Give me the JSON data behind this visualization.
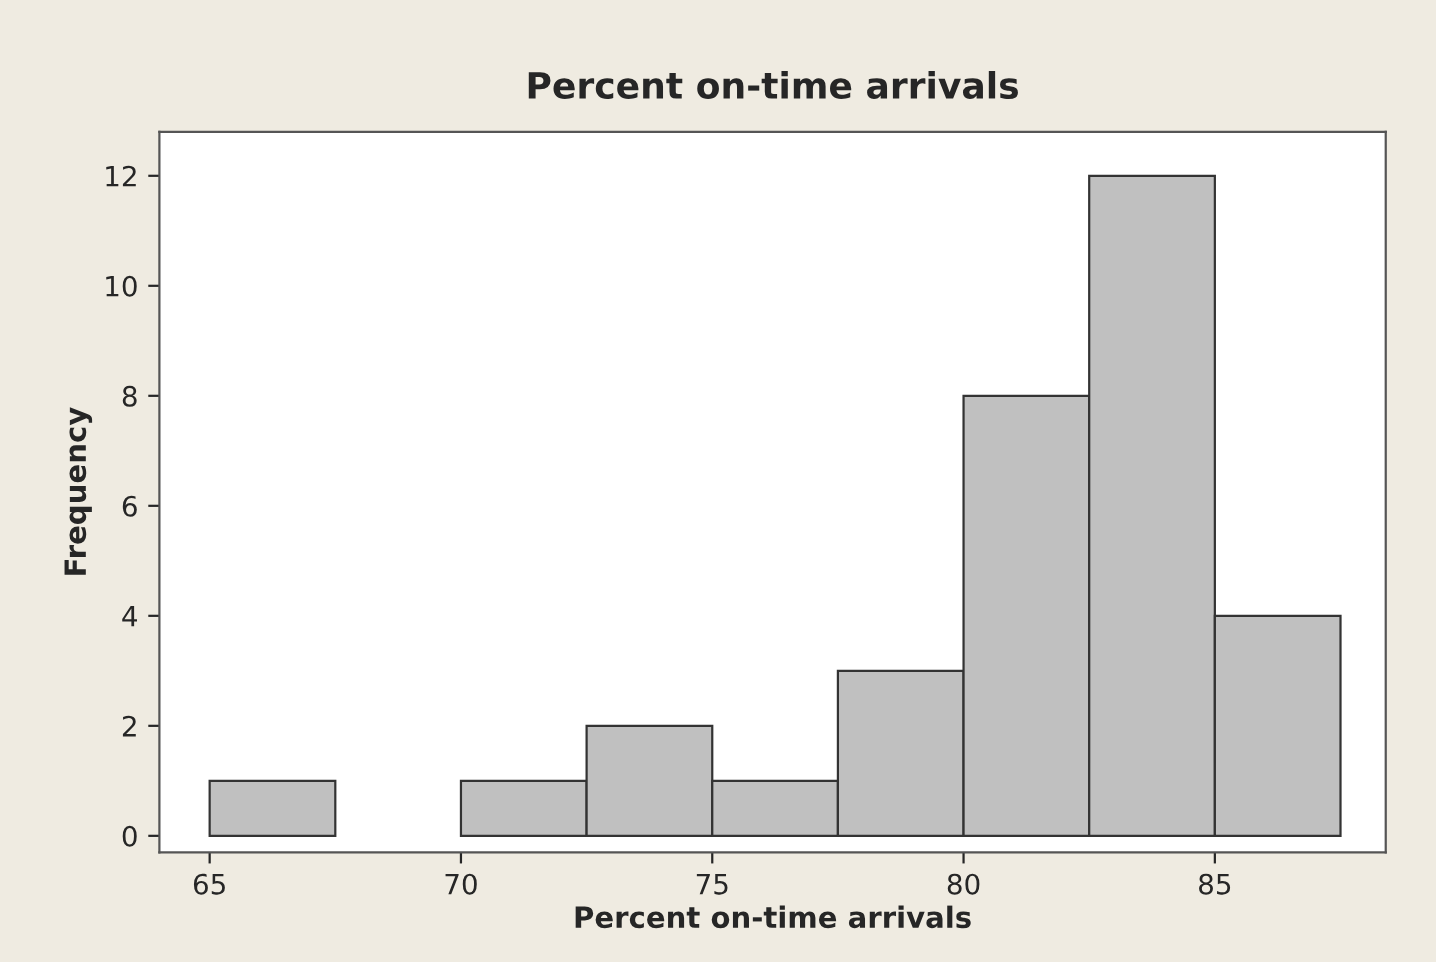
{
  "chart_data": {
    "type": "histogram",
    "title": "Percent on-time arrivals",
    "xlabel": "Percent on-time arrivals",
    "ylabel": "Frequency",
    "bins": [
      65,
      67.5,
      70,
      72.5,
      75,
      77.5,
      80,
      82.5,
      85,
      87.5
    ],
    "values": [
      1,
      0,
      1,
      2,
      1,
      3,
      8,
      12,
      4
    ],
    "color": "#c0c0c0",
    "xlim": [
      64,
      88.4
    ],
    "xticks": [
      65,
      70,
      75,
      80,
      85
    ],
    "ylim": [
      -0.3,
      12.8
    ],
    "yticks": [
      0,
      2,
      4,
      6,
      8,
      10,
      12
    ],
    "grid": false
  }
}
